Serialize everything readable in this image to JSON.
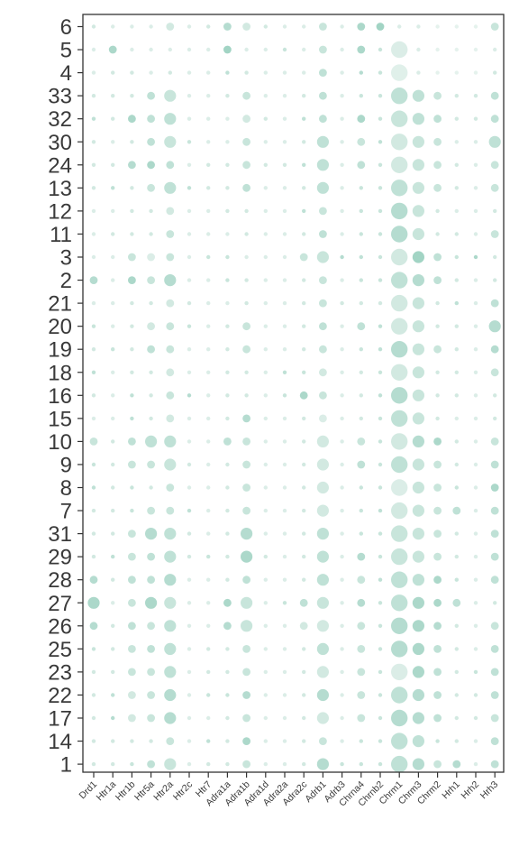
{
  "chart_data": {
    "type": "dotplot",
    "title": "",
    "xlabel": "",
    "ylabel": "",
    "colors": {
      "low": "#eef6f3",
      "high": "#8fcbb8",
      "axis": "#333333",
      "text": "#3a3a3a"
    },
    "columns": [
      "Drd1",
      "Htr1a",
      "Htr1b",
      "Htr5a",
      "Htr2a",
      "Htr2c",
      "Htr7",
      "Adra1a",
      "Adra1b",
      "Adra1d",
      "Adra2a",
      "Adra2c",
      "Adrb1",
      "Adrb3",
      "Chrna4",
      "Chrnb2",
      "Chrm1",
      "Chrm3",
      "Chrm2",
      "Hrh1",
      "Hrh2",
      "Hrh3"
    ],
    "rows": [
      "6",
      "5",
      "4",
      "33",
      "32",
      "30",
      "24",
      "13",
      "12",
      "11",
      "3",
      "2",
      "21",
      "20",
      "19",
      "18",
      "16",
      "15",
      "10",
      "9",
      "8",
      "7",
      "31",
      "29",
      "28",
      "27",
      "26",
      "25",
      "23",
      "22",
      "17",
      "14",
      "1"
    ],
    "size": [
      [
        1,
        1,
        1,
        1,
        2,
        1,
        1,
        2,
        2,
        1,
        1,
        1,
        2,
        1,
        2,
        2,
        1,
        1,
        1,
        1,
        1,
        2
      ],
      [
        1,
        2,
        1,
        1,
        1,
        1,
        1,
        2,
        1,
        1,
        1,
        1,
        2,
        1,
        2,
        1,
        4,
        1,
        1,
        1,
        1,
        1
      ],
      [
        1,
        1,
        1,
        1,
        1,
        1,
        1,
        1,
        1,
        1,
        1,
        1,
        2,
        1,
        1,
        1,
        4,
        1,
        1,
        1,
        1,
        1
      ],
      [
        1,
        1,
        1,
        2,
        3,
        1,
        1,
        1,
        2,
        1,
        1,
        1,
        2,
        1,
        1,
        1,
        4,
        3,
        2,
        1,
        1,
        2
      ],
      [
        1,
        1,
        2,
        2,
        3,
        1,
        1,
        1,
        2,
        1,
        1,
        1,
        2,
        1,
        2,
        1,
        4,
        3,
        2,
        1,
        1,
        2
      ],
      [
        1,
        1,
        1,
        2,
        3,
        1,
        1,
        1,
        2,
        1,
        1,
        1,
        3,
        1,
        2,
        1,
        4,
        3,
        2,
        1,
        1,
        3
      ],
      [
        1,
        1,
        2,
        2,
        2,
        1,
        1,
        1,
        2,
        1,
        1,
        1,
        3,
        1,
        2,
        1,
        4,
        3,
        2,
        1,
        1,
        2
      ],
      [
        1,
        1,
        1,
        2,
        3,
        1,
        1,
        1,
        2,
        1,
        1,
        1,
        3,
        1,
        1,
        1,
        4,
        3,
        2,
        1,
        1,
        2
      ],
      [
        1,
        1,
        1,
        1,
        2,
        1,
        1,
        1,
        1,
        1,
        1,
        1,
        2,
        1,
        1,
        1,
        4,
        3,
        1,
        1,
        1,
        1
      ],
      [
        1,
        1,
        1,
        1,
        2,
        1,
        1,
        1,
        1,
        1,
        1,
        1,
        2,
        1,
        1,
        1,
        4,
        3,
        1,
        1,
        1,
        2
      ],
      [
        1,
        1,
        2,
        2,
        2,
        1,
        1,
        1,
        1,
        1,
        1,
        2,
        3,
        1,
        1,
        1,
        4,
        3,
        2,
        1,
        1,
        1
      ],
      [
        2,
        1,
        2,
        2,
        3,
        1,
        1,
        1,
        1,
        1,
        1,
        1,
        2,
        1,
        1,
        1,
        4,
        3,
        2,
        1,
        1,
        1
      ],
      [
        1,
        1,
        1,
        1,
        2,
        1,
        1,
        1,
        1,
        1,
        1,
        1,
        2,
        1,
        1,
        1,
        4,
        3,
        1,
        1,
        1,
        2
      ],
      [
        1,
        1,
        1,
        2,
        2,
        1,
        1,
        1,
        2,
        1,
        1,
        1,
        2,
        1,
        2,
        1,
        4,
        3,
        1,
        1,
        1,
        3
      ],
      [
        1,
        1,
        1,
        2,
        2,
        1,
        1,
        1,
        2,
        1,
        1,
        1,
        2,
        1,
        1,
        1,
        4,
        3,
        2,
        1,
        1,
        2
      ],
      [
        1,
        1,
        1,
        1,
        2,
        1,
        1,
        1,
        1,
        1,
        1,
        1,
        2,
        1,
        1,
        1,
        4,
        3,
        1,
        1,
        1,
        2
      ],
      [
        1,
        1,
        1,
        1,
        2,
        1,
        1,
        1,
        1,
        1,
        1,
        2,
        2,
        1,
        1,
        1,
        4,
        3,
        1,
        1,
        1,
        1
      ],
      [
        1,
        1,
        1,
        1,
        2,
        1,
        1,
        1,
        2,
        1,
        1,
        1,
        2,
        1,
        1,
        1,
        4,
        3,
        1,
        1,
        1,
        1
      ],
      [
        2,
        1,
        2,
        3,
        3,
        1,
        1,
        2,
        2,
        1,
        1,
        1,
        3,
        1,
        2,
        1,
        4,
        3,
        2,
        1,
        1,
        2
      ],
      [
        1,
        1,
        2,
        2,
        3,
        1,
        1,
        1,
        2,
        1,
        1,
        1,
        3,
        1,
        2,
        1,
        4,
        3,
        2,
        1,
        1,
        2
      ],
      [
        1,
        1,
        1,
        1,
        2,
        1,
        1,
        1,
        2,
        1,
        1,
        1,
        3,
        1,
        1,
        1,
        4,
        3,
        2,
        1,
        1,
        2
      ],
      [
        1,
        1,
        1,
        2,
        2,
        1,
        1,
        1,
        2,
        1,
        1,
        1,
        3,
        1,
        1,
        1,
        4,
        3,
        2,
        2,
        1,
        2
      ],
      [
        1,
        1,
        2,
        3,
        3,
        1,
        1,
        1,
        3,
        1,
        1,
        1,
        3,
        1,
        1,
        1,
        4,
        3,
        2,
        1,
        1,
        2
      ],
      [
        1,
        1,
        2,
        2,
        3,
        1,
        1,
        1,
        3,
        1,
        1,
        1,
        3,
        1,
        2,
        1,
        4,
        3,
        2,
        1,
        1,
        2
      ],
      [
        2,
        1,
        2,
        2,
        3,
        1,
        1,
        1,
        2,
        1,
        1,
        1,
        3,
        1,
        2,
        1,
        4,
        3,
        2,
        1,
        1,
        2
      ],
      [
        3,
        1,
        2,
        3,
        3,
        1,
        1,
        2,
        3,
        1,
        1,
        2,
        3,
        1,
        2,
        1,
        4,
        3,
        2,
        2,
        1,
        1
      ],
      [
        2,
        1,
        2,
        2,
        3,
        1,
        1,
        2,
        3,
        1,
        1,
        2,
        3,
        1,
        2,
        1,
        4,
        3,
        2,
        1,
        1,
        2
      ],
      [
        1,
        1,
        2,
        2,
        3,
        1,
        1,
        1,
        2,
        1,
        1,
        1,
        3,
        1,
        2,
        1,
        4,
        3,
        2,
        1,
        1,
        2
      ],
      [
        1,
        1,
        2,
        2,
        3,
        1,
        1,
        1,
        2,
        1,
        1,
        1,
        3,
        1,
        2,
        1,
        4,
        3,
        2,
        1,
        1,
        2
      ],
      [
        1,
        1,
        2,
        2,
        3,
        1,
        1,
        1,
        2,
        1,
        1,
        1,
        3,
        1,
        2,
        1,
        4,
        3,
        2,
        1,
        1,
        2
      ],
      [
        1,
        1,
        2,
        2,
        3,
        1,
        1,
        1,
        2,
        1,
        1,
        1,
        3,
        1,
        2,
        1,
        4,
        3,
        2,
        1,
        1,
        2
      ],
      [
        1,
        1,
        1,
        1,
        2,
        1,
        1,
        1,
        2,
        1,
        1,
        1,
        2,
        1,
        1,
        1,
        4,
        3,
        1,
        1,
        1,
        2
      ],
      [
        1,
        1,
        1,
        2,
        3,
        1,
        1,
        1,
        2,
        1,
        1,
        1,
        3,
        1,
        1,
        1,
        4,
        3,
        2,
        2,
        1,
        2
      ]
    ],
    "intensity": [
      [
        0.3,
        0.2,
        0.2,
        0.2,
        0.3,
        0.2,
        0.3,
        0.6,
        0.3,
        0.3,
        0.2,
        0.2,
        0.4,
        0.2,
        0.7,
        0.8,
        0.2,
        0.2,
        0.1,
        0.1,
        0.1,
        0.4
      ],
      [
        0.2,
        0.7,
        0.2,
        0.2,
        0.2,
        0.2,
        0.2,
        0.8,
        0.2,
        0.2,
        0.4,
        0.2,
        0.4,
        0.2,
        0.7,
        0.4,
        0.2,
        0.2,
        0.1,
        0.1,
        0.1,
        0.2
      ],
      [
        0.2,
        0.3,
        0.3,
        0.2,
        0.3,
        0.2,
        0.2,
        0.5,
        0.3,
        0.2,
        0.2,
        0.2,
        0.5,
        0.2,
        0.6,
        0.4,
        0.15,
        0.2,
        0.1,
        0.1,
        0.1,
        0.3
      ],
      [
        0.3,
        0.3,
        0.3,
        0.5,
        0.4,
        0.2,
        0.2,
        0.3,
        0.4,
        0.2,
        0.2,
        0.3,
        0.5,
        0.2,
        0.4,
        0.4,
        0.5,
        0.5,
        0.4,
        0.3,
        0.3,
        0.5
      ],
      [
        0.5,
        0.3,
        0.7,
        0.5,
        0.5,
        0.2,
        0.2,
        0.2,
        0.3,
        0.3,
        0.2,
        0.5,
        0.5,
        0.2,
        0.7,
        0.4,
        0.4,
        0.5,
        0.5,
        0.3,
        0.3,
        0.5
      ],
      [
        0.3,
        0.2,
        0.3,
        0.5,
        0.4,
        0.4,
        0.2,
        0.2,
        0.4,
        0.2,
        0.2,
        0.3,
        0.5,
        0.2,
        0.4,
        0.5,
        0.3,
        0.4,
        0.4,
        0.2,
        0.2,
        0.5
      ],
      [
        0.3,
        0.3,
        0.6,
        0.7,
        0.5,
        0.2,
        0.3,
        0.3,
        0.4,
        0.3,
        0.3,
        0.5,
        0.5,
        0.2,
        0.5,
        0.4,
        0.3,
        0.4,
        0.4,
        0.3,
        0.2,
        0.4
      ],
      [
        0.3,
        0.5,
        0.3,
        0.4,
        0.5,
        0.5,
        0.3,
        0.3,
        0.5,
        0.2,
        0.2,
        0.3,
        0.5,
        0.2,
        0.4,
        0.4,
        0.5,
        0.4,
        0.4,
        0.3,
        0.2,
        0.4
      ],
      [
        0.2,
        0.2,
        0.3,
        0.3,
        0.3,
        0.2,
        0.2,
        0.3,
        0.3,
        0.2,
        0.2,
        0.5,
        0.4,
        0.2,
        0.4,
        0.4,
        0.6,
        0.4,
        0.3,
        0.2,
        0.2,
        0.3
      ],
      [
        0.2,
        0.3,
        0.3,
        0.3,
        0.4,
        0.2,
        0.2,
        0.2,
        0.3,
        0.2,
        0.2,
        0.3,
        0.5,
        0.2,
        0.4,
        0.4,
        0.6,
        0.4,
        0.3,
        0.3,
        0.2,
        0.4
      ],
      [
        0.2,
        0.2,
        0.4,
        0.2,
        0.4,
        0.2,
        0.4,
        0.4,
        0.2,
        0.2,
        0.2,
        0.4,
        0.4,
        0.6,
        0.5,
        0.4,
        0.3,
        0.8,
        0.5,
        0.4,
        0.7,
        0.3
      ],
      [
        0.6,
        0.2,
        0.7,
        0.4,
        0.6,
        0.2,
        0.2,
        0.4,
        0.3,
        0.2,
        0.2,
        0.3,
        0.4,
        0.2,
        0.4,
        0.4,
        0.5,
        0.6,
        0.5,
        0.3,
        0.2,
        0.3
      ],
      [
        0.2,
        0.2,
        0.3,
        0.3,
        0.3,
        0.3,
        0.2,
        0.2,
        0.3,
        0.2,
        0.2,
        0.3,
        0.4,
        0.3,
        0.3,
        0.3,
        0.3,
        0.4,
        0.3,
        0.5,
        0.2,
        0.5
      ],
      [
        0.4,
        0.2,
        0.3,
        0.3,
        0.4,
        0.4,
        0.2,
        0.3,
        0.4,
        0.2,
        0.2,
        0.3,
        0.5,
        0.2,
        0.5,
        0.5,
        0.3,
        0.4,
        0.3,
        0.3,
        0.2,
        0.6
      ],
      [
        0.3,
        0.4,
        0.3,
        0.5,
        0.4,
        0.2,
        0.2,
        0.3,
        0.4,
        0.2,
        0.2,
        0.3,
        0.4,
        0.2,
        0.4,
        0.5,
        0.6,
        0.4,
        0.4,
        0.3,
        0.2,
        0.6
      ],
      [
        0.5,
        0.2,
        0.3,
        0.3,
        0.3,
        0.2,
        0.2,
        0.3,
        0.3,
        0.2,
        0.5,
        0.4,
        0.3,
        0.2,
        0.3,
        0.4,
        0.3,
        0.4,
        0.3,
        0.3,
        0.2,
        0.4
      ],
      [
        0.3,
        0.2,
        0.5,
        0.3,
        0.4,
        0.6,
        0.2,
        0.3,
        0.3,
        0.2,
        0.4,
        0.7,
        0.4,
        0.2,
        0.3,
        0.5,
        0.6,
        0.4,
        0.3,
        0.3,
        0.2,
        0.3
      ],
      [
        0.2,
        0.2,
        0.5,
        0.3,
        0.3,
        0.2,
        0.2,
        0.3,
        0.6,
        0.2,
        0.2,
        0.3,
        0.2,
        0.2,
        0.3,
        0.4,
        0.5,
        0.4,
        0.3,
        0.2,
        0.2,
        0.3
      ],
      [
        0.4,
        0.3,
        0.5,
        0.5,
        0.5,
        0.2,
        0.2,
        0.5,
        0.4,
        0.2,
        0.2,
        0.3,
        0.3,
        0.2,
        0.4,
        0.4,
        0.3,
        0.6,
        0.7,
        0.3,
        0.2,
        0.4
      ],
      [
        0.4,
        0.3,
        0.4,
        0.4,
        0.4,
        0.3,
        0.2,
        0.3,
        0.4,
        0.2,
        0.2,
        0.3,
        0.3,
        0.2,
        0.5,
        0.4,
        0.5,
        0.4,
        0.4,
        0.3,
        0.2,
        0.5
      ],
      [
        0.5,
        0.3,
        0.4,
        0.3,
        0.4,
        0.2,
        0.2,
        0.3,
        0.4,
        0.2,
        0.2,
        0.3,
        0.3,
        0.2,
        0.4,
        0.4,
        0.2,
        0.4,
        0.4,
        0.4,
        0.2,
        0.7
      ],
      [
        0.3,
        0.3,
        0.4,
        0.4,
        0.4,
        0.5,
        0.2,
        0.3,
        0.4,
        0.2,
        0.2,
        0.3,
        0.3,
        0.2,
        0.4,
        0.5,
        0.3,
        0.4,
        0.4,
        0.5,
        0.2,
        0.5
      ],
      [
        0.3,
        0.3,
        0.4,
        0.6,
        0.5,
        0.3,
        0.2,
        0.3,
        0.6,
        0.2,
        0.2,
        0.3,
        0.5,
        0.2,
        0.4,
        0.4,
        0.4,
        0.4,
        0.4,
        0.3,
        0.2,
        0.5
      ],
      [
        0.3,
        0.5,
        0.4,
        0.5,
        0.5,
        0.3,
        0.4,
        0.3,
        0.7,
        0.3,
        0.2,
        0.3,
        0.5,
        0.2,
        0.6,
        0.4,
        0.4,
        0.4,
        0.4,
        0.3,
        0.2,
        0.5
      ],
      [
        0.6,
        0.3,
        0.5,
        0.5,
        0.6,
        0.2,
        0.2,
        0.3,
        0.5,
        0.2,
        0.2,
        0.3,
        0.5,
        0.2,
        0.4,
        0.5,
        0.5,
        0.5,
        0.7,
        0.4,
        0.2,
        0.5
      ],
      [
        0.7,
        0.2,
        0.4,
        0.7,
        0.4,
        0.2,
        0.2,
        0.7,
        0.4,
        0.2,
        0.4,
        0.5,
        0.4,
        0.2,
        0.6,
        0.4,
        0.5,
        0.7,
        0.7,
        0.5,
        0.2,
        0.3
      ],
      [
        0.6,
        0.3,
        0.5,
        0.4,
        0.5,
        0.2,
        0.2,
        0.6,
        0.4,
        0.2,
        0.2,
        0.3,
        0.3,
        0.2,
        0.4,
        0.4,
        0.6,
        0.7,
        0.6,
        0.3,
        0.2,
        0.4
      ],
      [
        0.4,
        0.3,
        0.4,
        0.5,
        0.5,
        0.2,
        0.3,
        0.3,
        0.4,
        0.2,
        0.2,
        0.3,
        0.5,
        0.2,
        0.4,
        0.4,
        0.6,
        0.7,
        0.5,
        0.3,
        0.2,
        0.5
      ],
      [
        0.3,
        0.3,
        0.4,
        0.4,
        0.5,
        0.2,
        0.3,
        0.3,
        0.4,
        0.2,
        0.2,
        0.3,
        0.3,
        0.2,
        0.4,
        0.4,
        0.2,
        0.7,
        0.5,
        0.3,
        0.4,
        0.5
      ],
      [
        0.3,
        0.5,
        0.3,
        0.4,
        0.6,
        0.2,
        0.4,
        0.4,
        0.6,
        0.2,
        0.2,
        0.3,
        0.6,
        0.2,
        0.4,
        0.4,
        0.5,
        0.6,
        0.5,
        0.3,
        0.3,
        0.5
      ],
      [
        0.3,
        0.6,
        0.3,
        0.4,
        0.6,
        0.2,
        0.2,
        0.3,
        0.4,
        0.2,
        0.2,
        0.3,
        0.3,
        0.2,
        0.4,
        0.4,
        0.6,
        0.6,
        0.5,
        0.3,
        0.3,
        0.4
      ],
      [
        0.3,
        0.3,
        0.3,
        0.3,
        0.4,
        0.2,
        0.5,
        0.3,
        0.7,
        0.2,
        0.2,
        0.3,
        0.4,
        0.2,
        0.4,
        0.4,
        0.5,
        0.5,
        0.4,
        0.3,
        0.2,
        0.5
      ],
      [
        0.3,
        0.3,
        0.4,
        0.5,
        0.4,
        0.2,
        0.3,
        0.3,
        0.4,
        0.2,
        0.2,
        0.3,
        0.6,
        0.4,
        0.4,
        0.4,
        0.5,
        0.6,
        0.4,
        0.6,
        0.2,
        0.5
      ]
    ]
  }
}
